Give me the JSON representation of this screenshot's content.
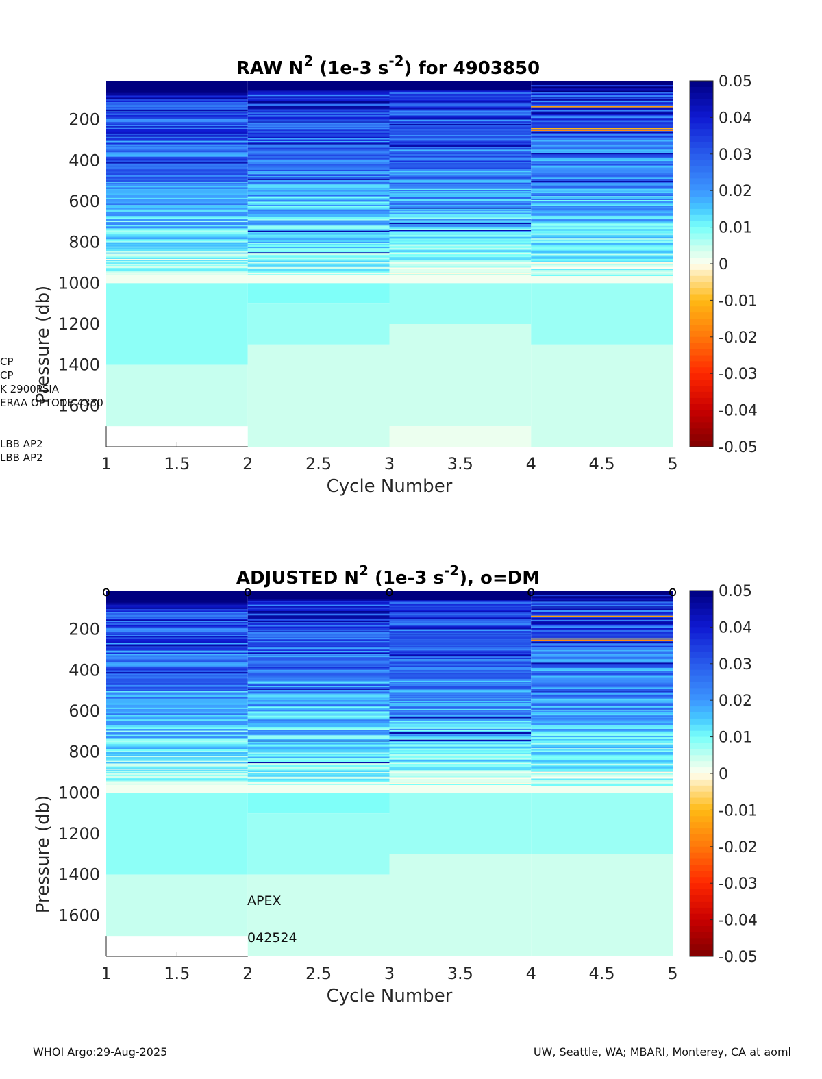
{
  "panels": [
    {
      "id": "raw",
      "title_prefix": "RAW N",
      "title_sup": "2",
      "title_mid": " (1e-3 s",
      "title_sup2": "-2",
      "title_suffix": ") for 4903850",
      "dm_marker": ""
    },
    {
      "id": "adj",
      "title_prefix": "ADJUSTED N",
      "title_sup": "2",
      "title_mid": " (1e-3 s",
      "title_sup2": "-2",
      "title_suffix": "), o=DM",
      "dm_marker": "o"
    }
  ],
  "chart_data": {
    "type": "heatmap",
    "xlabel": "Cycle Number",
    "ylabel": "Pressure (db)",
    "x_ticks": [
      "1",
      "1.5",
      "2",
      "2.5",
      "3",
      "3.5",
      "4",
      "4.5",
      "5"
    ],
    "xlim": [
      1,
      5
    ],
    "y_ticks": [
      "200",
      "400",
      "600",
      "800",
      "1000",
      "1200",
      "1400",
      "1600"
    ],
    "ylim": [
      10,
      1800
    ],
    "y_reversed": true,
    "colorbar": {
      "ticks": [
        "0.05",
        "0.04",
        "0.03",
        "0.02",
        "0.01",
        "0",
        "-0.01",
        "-0.02",
        "-0.03",
        "-0.04",
        "-0.05"
      ],
      "range": [
        -0.05,
        0.05
      ],
      "colormap": "blue-cyan-white-yellow-red"
    },
    "cycles": [
      1,
      2,
      3,
      4
    ],
    "deep_layers": {
      "raw": [
        [
          [
            1000,
            1400,
            0.0085
          ],
          [
            1400,
            1700,
            0.0045
          ]
        ],
        [
          [
            1000,
            1100,
            0.0095
          ],
          [
            1100,
            1300,
            0.0075
          ],
          [
            1300,
            1800,
            0.004
          ]
        ],
        [
          [
            1000,
            1200,
            0.0075
          ],
          [
            1200,
            1700,
            0.004
          ],
          [
            1700,
            1800,
            0.0015
          ]
        ],
        [
          [
            1000,
            1300,
            0.0075
          ],
          [
            1300,
            1800,
            0.004
          ]
        ]
      ],
      "adjusted": [
        [
          [
            1000,
            1400,
            0.0085
          ],
          [
            1400,
            1700,
            0.0045
          ]
        ],
        [
          [
            1000,
            1100,
            0.0095
          ],
          [
            1100,
            1400,
            0.0075
          ],
          [
            1400,
            1800,
            0.004
          ]
        ],
        [
          [
            1000,
            1300,
            0.0075
          ],
          [
            1300,
            1800,
            0.004
          ]
        ],
        [
          [
            1000,
            1300,
            0.0075
          ],
          [
            1300,
            1800,
            0.004
          ]
        ]
      ]
    }
  },
  "side_notes": [
    "CP",
    "CP",
    "K 2900PSIA",
    "ERAA OPTODE 4330",
    "LBB AP2",
    "LBB AP2"
  ],
  "overlay": {
    "platform": "APEX",
    "firmware": "042524"
  },
  "footer": {
    "left": "WHOI Argo:29-Aug-2025",
    "right": "UW, Seattle, WA; MBARI, Monterey, CA at aoml"
  }
}
